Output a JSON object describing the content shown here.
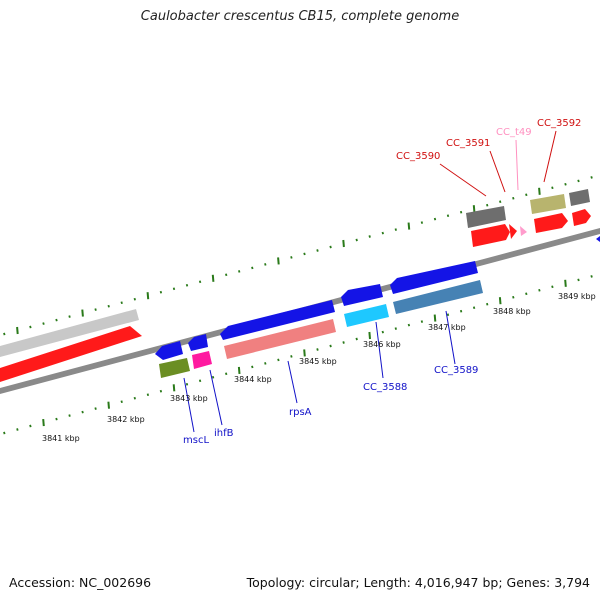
{
  "title": "Caulobacter crescentus CB15, complete genome",
  "footer": {
    "accession": "Accession: NC_002696",
    "summary": "Topology: circular; Length: 4,016,947 bp; Genes: 3,794"
  },
  "colors": {
    "backbone": "#8a8a8a",
    "ticks": "#2a7a1a",
    "forward_red": "#ff1a1a",
    "grey_feature": "#c8c8c8",
    "dark_grey": "#6e6e6e",
    "olive": "#b8b46e",
    "blue": "#1414e6",
    "salmon": "#f08080",
    "cyan": "#1ec8ff",
    "steelblue": "#4682b4",
    "magenta": "#ff1aa0",
    "olive_green": "#6b8e23",
    "pink": "#ff9ccc",
    "label_blue": "#1212c8",
    "label_red": "#d01010",
    "label_pink": "#ff90c0"
  },
  "tick_labels": [
    {
      "text": "3841 kbp"
    },
    {
      "text": "3842 kbp"
    },
    {
      "text": "3843 kbp"
    },
    {
      "text": "3844 kbp"
    },
    {
      "text": "3845 kbp"
    },
    {
      "text": "3846 kbp"
    },
    {
      "text": "3847 kbp"
    },
    {
      "text": "3848 kbp"
    },
    {
      "text": "3849 kbp"
    }
  ],
  "gene_labels": [
    {
      "text": "mscL",
      "color": "blue"
    },
    {
      "text": "ihfB",
      "color": "blue"
    },
    {
      "text": "rpsA",
      "color": "blue"
    },
    {
      "text": "CC_3588",
      "color": "blue"
    },
    {
      "text": "CC_3589",
      "color": "blue"
    },
    {
      "text": "CC_3590",
      "color": "red"
    },
    {
      "text": "CC_3591",
      "color": "red"
    },
    {
      "text": "CC_t49",
      "color": "pink"
    },
    {
      "text": "CC_3592",
      "color": "red"
    }
  ]
}
